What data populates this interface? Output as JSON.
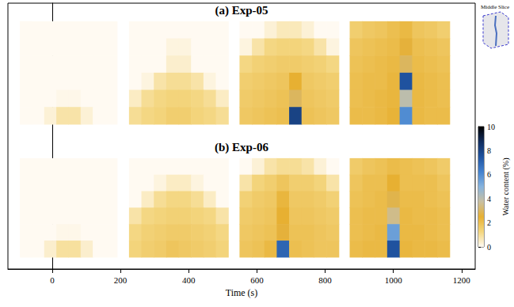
{
  "chart_data": {
    "type": "heatmap",
    "x_label": "Time (s)",
    "xlim": [
      -130,
      1240
    ],
    "xticks": [
      0,
      200,
      400,
      600,
      800,
      1000,
      1200
    ],
    "grid": false,
    "tick_labels": "x",
    "inset_label": "Middle Slice",
    "colorbar": {
      "label": "Water content (%)",
      "range": [
        0,
        10
      ],
      "ticks": [
        0,
        2,
        4,
        6,
        8,
        10
      ]
    },
    "rows": [
      {
        "title": "(a) Exp-05",
        "panels": [
          {
            "time_range": [
              -95,
              190
            ],
            "cells": [
              [
                0,
                0,
                0,
                0,
                0,
                0,
                0,
                0
              ],
              [
                0,
                0,
                0,
                0,
                0,
                0,
                0,
                0
              ],
              [
                0,
                0,
                0,
                0,
                0,
                0,
                0,
                0
              ],
              [
                0,
                0,
                0,
                0,
                0,
                0,
                0,
                0
              ],
              [
                0,
                0,
                0,
                0.1,
                0.1,
                0,
                0,
                0
              ],
              [
                0,
                0,
                0.3,
                0.8,
                0.8,
                0.3,
                0,
                0
              ]
            ]
          },
          {
            "time_range": [
              225,
              516
            ],
            "cells": [
              [
                0,
                0,
                0,
                0,
                0,
                0,
                0,
                0
              ],
              [
                0,
                0,
                0,
                0.2,
                0.2,
                0,
                0,
                0
              ],
              [
                0,
                0,
                0,
                0.4,
                0.4,
                0,
                0,
                0
              ],
              [
                0,
                0.2,
                0.8,
                1,
                1,
                0.8,
                0.2,
                0
              ],
              [
                0.5,
                1,
                1.2,
                1.3,
                1.3,
                1.2,
                1,
                0.5
              ],
              [
                1,
                1.2,
                1.3,
                1.5,
                1.5,
                1.3,
                1.2,
                1
              ]
            ]
          },
          {
            "time_range": [
              549,
              840
            ],
            "cells": [
              [
                0,
                0,
                0.3,
                0.6,
                0.6,
                0.3,
                0,
                0
              ],
              [
                0.2,
                0.8,
                1.2,
                1.3,
                1.3,
                1.2,
                0.8,
                0.2
              ],
              [
                1.2,
                1.4,
                1.5,
                1.6,
                1.6,
                1.5,
                1.4,
                1.2
              ],
              [
                1.5,
                1.6,
                1.7,
                1.8,
                2.5,
                1.7,
                1.6,
                1.5
              ],
              [
                1.6,
                1.7,
                1.8,
                1.9,
                3.0,
                1.8,
                1.7,
                1.6
              ],
              [
                1.7,
                1.8,
                1.9,
                2.0,
                8.0,
                1.9,
                1.8,
                1.7
              ]
            ]
          },
          {
            "time_range": [
              872,
              1165
            ],
            "cells": [
              [
                1.5,
                1.7,
                1.8,
                2.0,
                2.2,
                1.8,
                1.7,
                1.5
              ],
              [
                1.8,
                1.9,
                2.0,
                2.1,
                2.6,
                2.0,
                1.9,
                1.8
              ],
              [
                1.9,
                2.0,
                2.1,
                2.2,
                3.0,
                2.1,
                2.0,
                1.9
              ],
              [
                2.0,
                2.1,
                2.1,
                2.3,
                7.5,
                2.2,
                2.1,
                2.0
              ],
              [
                2.0,
                2.1,
                2.2,
                2.3,
                4.0,
                2.2,
                2.1,
                2.0
              ],
              [
                2.1,
                2.1,
                2.2,
                2.4,
                6.0,
                2.2,
                2.1,
                2.1
              ]
            ]
          }
        ]
      },
      {
        "title": "(b) Exp-06",
        "panels": [
          {
            "time_range": [
              -95,
              190
            ],
            "cells": [
              [
                0,
                0,
                0,
                0,
                0,
                0,
                0,
                0
              ],
              [
                0,
                0,
                0,
                0,
                0,
                0,
                0,
                0
              ],
              [
                0,
                0,
                0,
                0,
                0,
                0,
                0,
                0
              ],
              [
                0,
                0,
                0,
                0,
                0,
                0,
                0,
                0
              ],
              [
                0,
                0,
                0,
                0.1,
                0.1,
                0,
                0,
                0
              ],
              [
                0,
                0,
                0.4,
                0.9,
                0.9,
                0.4,
                0,
                0
              ]
            ]
          },
          {
            "time_range": [
              225,
              516
            ],
            "cells": [
              [
                0,
                0,
                0,
                0,
                0,
                0,
                0,
                0
              ],
              [
                0,
                0,
                0.2,
                0.5,
                0.5,
                0.2,
                0,
                0
              ],
              [
                0,
                0.5,
                1.0,
                1.2,
                1.2,
                1.0,
                0.5,
                0
              ],
              [
                0.8,
                1.2,
                1.3,
                1.4,
                1.4,
                1.3,
                1.2,
                0.8
              ],
              [
                1.2,
                1.4,
                1.5,
                1.6,
                1.6,
                1.5,
                1.4,
                1.2
              ],
              [
                1.3,
                1.5,
                1.6,
                1.8,
                1.7,
                1.6,
                1.5,
                1.3
              ]
            ]
          },
          {
            "time_range": [
              549,
              840
            ],
            "cells": [
              [
                0,
                0.3,
                0.8,
                1.0,
                1.0,
                0.8,
                0.3,
                0
              ],
              [
                0.8,
                1.3,
                1.5,
                1.8,
                1.5,
                1.5,
                1.3,
                0.8
              ],
              [
                1.4,
                1.6,
                1.7,
                2.3,
                1.7,
                1.7,
                1.6,
                1.4
              ],
              [
                1.6,
                1.7,
                1.8,
                2.5,
                1.8,
                1.8,
                1.7,
                1.6
              ],
              [
                1.7,
                1.8,
                1.9,
                2.6,
                1.9,
                1.9,
                1.8,
                1.7
              ],
              [
                1.8,
                1.9,
                2.2,
                7.0,
                2.0,
                1.9,
                1.8,
                1.8
              ]
            ]
          },
          {
            "time_range": [
              872,
              1165
            ],
            "cells": [
              [
                1.6,
                1.8,
                1.9,
                2.1,
                2.0,
                1.9,
                1.8,
                1.6
              ],
              [
                1.8,
                2.0,
                2.0,
                2.5,
                2.0,
                2.0,
                2.0,
                1.8
              ],
              [
                1.9,
                2.0,
                2.1,
                2.8,
                2.1,
                2.1,
                2.0,
                1.9
              ],
              [
                2.0,
                2.1,
                2.1,
                3.5,
                2.2,
                2.1,
                2.1,
                2.0
              ],
              [
                2.0,
                2.1,
                2.2,
                5.5,
                2.2,
                2.2,
                2.1,
                2.0
              ],
              [
                2.1,
                2.2,
                2.2,
                7.5,
                2.3,
                2.2,
                2.2,
                2.1
              ]
            ]
          }
        ]
      }
    ]
  }
}
